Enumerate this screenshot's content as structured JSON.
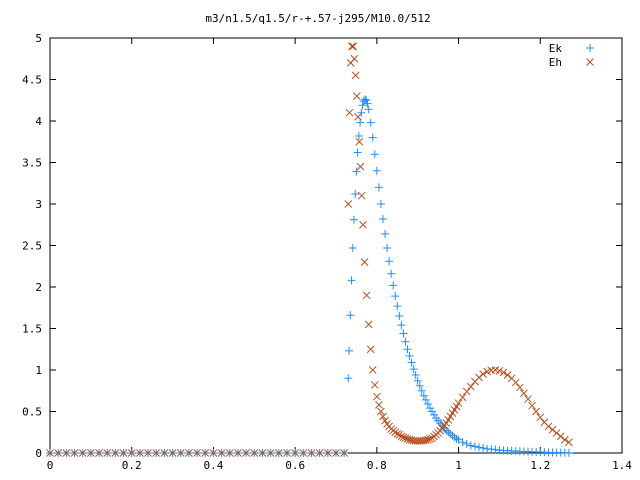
{
  "chart_data": {
    "type": "scatter",
    "title": "m3/n1.5/q1.5/r-+.57-j295/M10.0/512",
    "xlabel": "",
    "ylabel": "",
    "xlim": [
      0,
      1.4
    ],
    "ylim": [
      0,
      5
    ],
    "x_ticks": [
      "0",
      "0.2",
      "0.4",
      "0.6",
      "0.8",
      "1",
      "1.2",
      "1.4"
    ],
    "y_ticks": [
      "0",
      "0.5",
      "1",
      "1.5",
      "2",
      "2.5",
      "3",
      "3.5",
      "4",
      "4.5",
      "5"
    ],
    "legend_position": "top-right",
    "grid": false,
    "series": [
      {
        "name": "Ek",
        "marker": "plus",
        "color": "#1e90ff",
        "x": [
          0.0,
          0.02,
          0.04,
          0.06,
          0.08,
          0.1,
          0.12,
          0.14,
          0.16,
          0.18,
          0.2,
          0.22,
          0.24,
          0.26,
          0.28,
          0.3,
          0.32,
          0.34,
          0.36,
          0.38,
          0.4,
          0.42,
          0.44,
          0.46,
          0.48,
          0.5,
          0.52,
          0.54,
          0.56,
          0.58,
          0.6,
          0.62,
          0.64,
          0.66,
          0.68,
          0.7,
          0.72,
          0.73,
          0.732,
          0.735,
          0.738,
          0.741,
          0.744,
          0.747,
          0.75,
          0.753,
          0.756,
          0.759,
          0.762,
          0.765,
          0.768,
          0.771,
          0.774,
          0.777,
          0.78,
          0.785,
          0.79,
          0.795,
          0.8,
          0.805,
          0.81,
          0.815,
          0.82,
          0.825,
          0.83,
          0.835,
          0.84,
          0.845,
          0.85,
          0.855,
          0.86,
          0.865,
          0.87,
          0.875,
          0.88,
          0.885,
          0.89,
          0.895,
          0.9,
          0.905,
          0.91,
          0.915,
          0.92,
          0.925,
          0.93,
          0.935,
          0.94,
          0.945,
          0.95,
          0.955,
          0.96,
          0.965,
          0.97,
          0.975,
          0.98,
          0.985,
          0.99,
          0.995,
          1.0,
          1.01,
          1.02,
          1.03,
          1.04,
          1.05,
          1.06,
          1.07,
          1.08,
          1.09,
          1.1,
          1.11,
          1.12,
          1.13,
          1.14,
          1.15,
          1.16,
          1.17,
          1.18,
          1.19,
          1.2,
          1.21,
          1.22,
          1.23,
          1.24,
          1.25,
          1.26,
          1.27
        ],
        "y": [
          0,
          0,
          0,
          0,
          0,
          0,
          0,
          0,
          0,
          0,
          0,
          0,
          0,
          0,
          0,
          0,
          0,
          0,
          0,
          0,
          0,
          0,
          0,
          0,
          0,
          0,
          0,
          0,
          0,
          0,
          0,
          0,
          0,
          0,
          0,
          0,
          0,
          0.9,
          1.23,
          1.66,
          2.08,
          2.47,
          2.81,
          3.12,
          3.39,
          3.62,
          3.82,
          3.98,
          4.1,
          4.19,
          4.24,
          4.26,
          4.25,
          4.21,
          4.14,
          3.98,
          3.8,
          3.6,
          3.4,
          3.2,
          3.0,
          2.82,
          2.64,
          2.47,
          2.31,
          2.16,
          2.02,
          1.89,
          1.77,
          1.65,
          1.54,
          1.44,
          1.34,
          1.25,
          1.17,
          1.09,
          1.01,
          0.94,
          0.87,
          0.81,
          0.75,
          0.69,
          0.64,
          0.59,
          0.54,
          0.5,
          0.46,
          0.42,
          0.39,
          0.36,
          0.33,
          0.3,
          0.27,
          0.25,
          0.23,
          0.21,
          0.19,
          0.17,
          0.16,
          0.13,
          0.11,
          0.09,
          0.08,
          0.07,
          0.06,
          0.05,
          0.045,
          0.04,
          0.035,
          0.03,
          0.028,
          0.025,
          0.022,
          0.02,
          0.018,
          0.016,
          0.014,
          0.012,
          0.01,
          0.009,
          0.008,
          0.006,
          0.005,
          0.004,
          0.003,
          0.002
        ]
      },
      {
        "name": "Eh",
        "marker": "cross",
        "color": "#b8501e",
        "x": [
          0.0,
          0.02,
          0.04,
          0.06,
          0.08,
          0.1,
          0.12,
          0.14,
          0.16,
          0.18,
          0.2,
          0.22,
          0.24,
          0.26,
          0.28,
          0.3,
          0.32,
          0.34,
          0.36,
          0.38,
          0.4,
          0.42,
          0.44,
          0.46,
          0.48,
          0.5,
          0.52,
          0.54,
          0.56,
          0.58,
          0.6,
          0.62,
          0.64,
          0.66,
          0.68,
          0.7,
          0.72,
          0.73,
          0.733,
          0.736,
          0.739,
          0.742,
          0.745,
          0.748,
          0.751,
          0.754,
          0.757,
          0.76,
          0.763,
          0.766,
          0.77,
          0.775,
          0.78,
          0.785,
          0.79,
          0.795,
          0.8,
          0.805,
          0.81,
          0.815,
          0.82,
          0.825,
          0.83,
          0.835,
          0.84,
          0.845,
          0.85,
          0.855,
          0.86,
          0.865,
          0.87,
          0.875,
          0.88,
          0.885,
          0.89,
          0.895,
          0.9,
          0.905,
          0.91,
          0.915,
          0.92,
          0.925,
          0.93,
          0.935,
          0.94,
          0.945,
          0.95,
          0.955,
          0.96,
          0.965,
          0.97,
          0.975,
          0.98,
          0.985,
          0.99,
          0.995,
          1.0,
          1.01,
          1.02,
          1.03,
          1.04,
          1.05,
          1.06,
          1.07,
          1.08,
          1.09,
          1.1,
          1.11,
          1.12,
          1.13,
          1.14,
          1.15,
          1.16,
          1.17,
          1.18,
          1.19,
          1.2,
          1.21,
          1.22,
          1.23,
          1.24,
          1.25,
          1.26,
          1.27
        ],
        "y": [
          0,
          0,
          0,
          0,
          0,
          0,
          0,
          0,
          0,
          0,
          0,
          0,
          0,
          0,
          0,
          0,
          0,
          0,
          0,
          0,
          0,
          0,
          0,
          0,
          0,
          0,
          0,
          0,
          0,
          0,
          0,
          0,
          0,
          0,
          0,
          0,
          0,
          3.0,
          4.1,
          4.7,
          4.9,
          4.9,
          4.75,
          4.55,
          4.3,
          4.05,
          3.75,
          3.45,
          3.1,
          2.75,
          2.3,
          1.9,
          1.55,
          1.25,
          1.0,
          0.82,
          0.68,
          0.58,
          0.5,
          0.44,
          0.39,
          0.35,
          0.32,
          0.29,
          0.27,
          0.25,
          0.23,
          0.22,
          0.2,
          0.19,
          0.18,
          0.17,
          0.16,
          0.155,
          0.15,
          0.148,
          0.145,
          0.145,
          0.147,
          0.15,
          0.155,
          0.16,
          0.17,
          0.18,
          0.2,
          0.22,
          0.24,
          0.27,
          0.3,
          0.33,
          0.36,
          0.4,
          0.44,
          0.48,
          0.52,
          0.56,
          0.6,
          0.67,
          0.74,
          0.8,
          0.86,
          0.91,
          0.95,
          0.98,
          0.995,
          1.0,
          0.99,
          0.97,
          0.94,
          0.9,
          0.85,
          0.79,
          0.72,
          0.65,
          0.57,
          0.5,
          0.43,
          0.37,
          0.32,
          0.28,
          0.24,
          0.2,
          0.16,
          0.13
        ]
      }
    ]
  }
}
